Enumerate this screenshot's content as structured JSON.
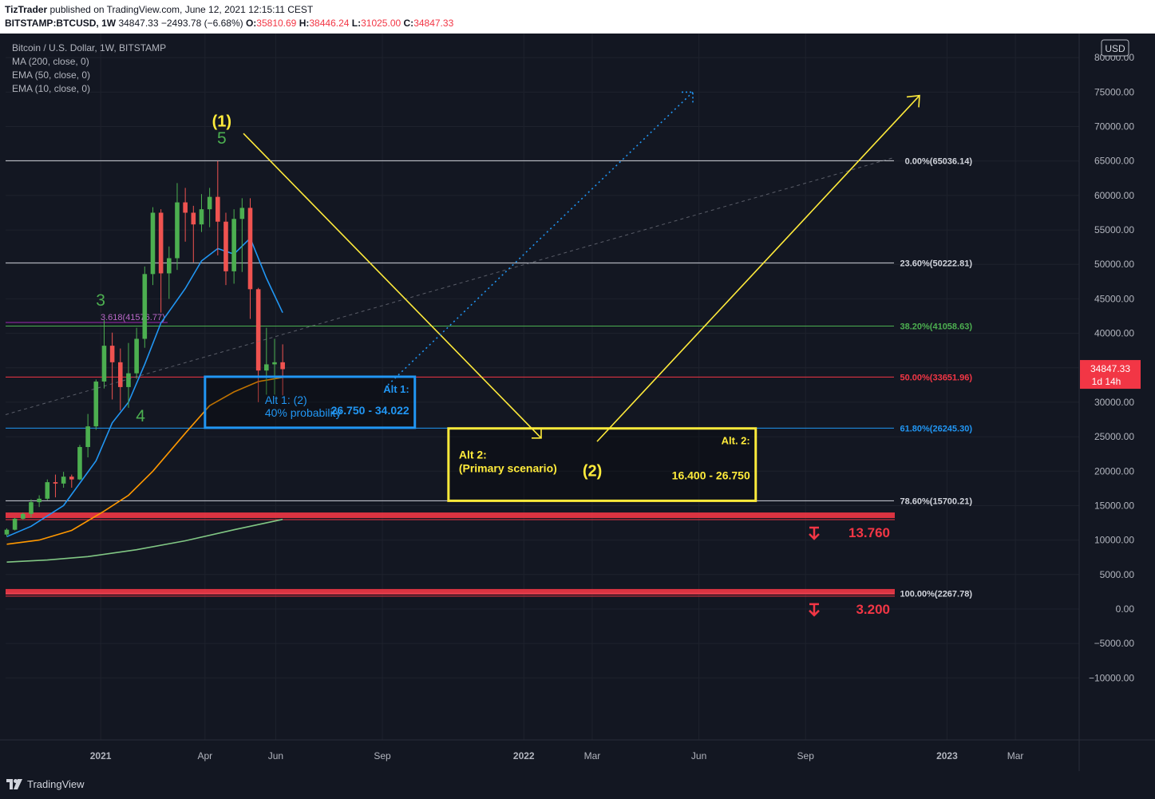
{
  "header": {
    "publisher": "TizTrader",
    "published_text": "published on TradingView.com, June 12, 2021 12:15:11 CEST",
    "symbol": "BITSTAMP:BTCUSD, 1W",
    "last": "34847.33",
    "change": "−2493.78 (−6.68%)",
    "open_label": "O:",
    "open": "35810.69",
    "high_label": "H:",
    "high": "38446.24",
    "low_label": "L:",
    "low": "31025.00",
    "close_label": "C:",
    "close": "34847.33"
  },
  "legend": {
    "title": "Bitcoin / U.S. Dollar, 1W, BITSTAMP",
    "indicators": [
      "MA (200, close, 0)",
      "EMA (50, close, 0)",
      "EMA (10, close, 0)"
    ]
  },
  "footer": {
    "brand": "TradingView"
  },
  "colors": {
    "background": "#131722",
    "grid": "#1e222d",
    "axis_text": "#b2b5be",
    "up": "#26a69a",
    "up_candle": "#4caf50",
    "down": "#ef5350",
    "ema10": "#2196f3",
    "ema50": "#ff9800",
    "ma200": "#81c784",
    "yellow": "#ffeb3b",
    "blue_box": "#2196f3",
    "red_zone": "#f23645",
    "purple": "#9c27b0"
  },
  "chart_data": {
    "type": "candlestick",
    "currency_label": "USD",
    "price_ticks": [
      80000,
      75000,
      70000,
      65000,
      60000,
      55000,
      50000,
      45000,
      40000,
      35000,
      30000,
      25000,
      20000,
      15000,
      10000,
      5000,
      0,
      -5000,
      -10000
    ],
    "price_tick_labels": [
      "80000.00",
      "75000.00",
      "70000.00",
      "65000.00",
      "60000.00",
      "55000.00",
      "50000.00",
      "45000.00",
      "40000.00",
      "35000.00",
      "30000.00",
      "25000.00",
      "20000.00",
      "15000.00",
      "10000.00",
      "5000.00",
      "0.00",
      "−5000.00",
      "−10000.00"
    ],
    "ylim": [
      -19000,
      83500
    ],
    "time_labels": [
      {
        "label": "2021",
        "date": "2021-01-01",
        "bold": true
      },
      {
        "label": "Apr",
        "date": "2021-04-01",
        "bold": false
      },
      {
        "label": "Jun",
        "date": "2021-06-01",
        "bold": false
      },
      {
        "label": "Sep",
        "date": "2021-09-01",
        "bold": false
      },
      {
        "label": "2022",
        "date": "2022-01-01",
        "bold": true
      },
      {
        "label": "Mar",
        "date": "2022-03-01",
        "bold": false
      },
      {
        "label": "Jun",
        "date": "2022-06-01",
        "bold": false
      },
      {
        "label": "Sep",
        "date": "2022-09-01",
        "bold": false
      },
      {
        "label": "2023",
        "date": "2023-01-01",
        "bold": true
      },
      {
        "label": "Mar",
        "date": "2023-03-01",
        "bold": false
      }
    ],
    "xlim": [
      "2020-10-11",
      "2023-04-25"
    ],
    "candles": [
      {
        "t": "2020-10-12",
        "o": 10800,
        "h": 11700,
        "l": 10500,
        "c": 11500
      },
      {
        "t": "2020-10-19",
        "o": 11500,
        "h": 13200,
        "l": 11400,
        "c": 13100
      },
      {
        "t": "2020-10-26",
        "o": 13100,
        "h": 14000,
        "l": 12900,
        "c": 13800
      },
      {
        "t": "2020-11-02",
        "o": 13800,
        "h": 15900,
        "l": 13300,
        "c": 15500
      },
      {
        "t": "2020-11-09",
        "o": 15500,
        "h": 16500,
        "l": 14800,
        "c": 16000
      },
      {
        "t": "2020-11-16",
        "o": 16000,
        "h": 18800,
        "l": 15800,
        "c": 18400
      },
      {
        "t": "2020-11-23",
        "o": 18400,
        "h": 19500,
        "l": 16200,
        "c": 18200
      },
      {
        "t": "2020-11-30",
        "o": 18200,
        "h": 19900,
        "l": 17600,
        "c": 19200
      },
      {
        "t": "2020-12-07",
        "o": 19200,
        "h": 19500,
        "l": 17600,
        "c": 18800
      },
      {
        "t": "2020-12-14",
        "o": 18800,
        "h": 23800,
        "l": 18700,
        "c": 23500
      },
      {
        "t": "2020-12-21",
        "o": 23500,
        "h": 28300,
        "l": 22000,
        "c": 26500
      },
      {
        "t": "2020-12-28",
        "o": 26500,
        "h": 33300,
        "l": 26000,
        "c": 33000
      },
      {
        "t": "2021-01-04",
        "o": 33000,
        "h": 41900,
        "l": 32000,
        "c": 38200
      },
      {
        "t": "2021-01-11",
        "o": 38200,
        "h": 40100,
        "l": 30400,
        "c": 35800
      },
      {
        "t": "2021-01-18",
        "o": 35800,
        "h": 37800,
        "l": 28800,
        "c": 32200
      },
      {
        "t": "2021-01-25",
        "o": 32200,
        "h": 38600,
        "l": 29200,
        "c": 34200
      },
      {
        "t": "2021-02-01",
        "o": 34200,
        "h": 40800,
        "l": 33400,
        "c": 39200
      },
      {
        "t": "2021-02-08",
        "o": 39200,
        "h": 49700,
        "l": 37900,
        "c": 48600
      },
      {
        "t": "2021-02-15",
        "o": 48600,
        "h": 58300,
        "l": 47000,
        "c": 57500
      },
      {
        "t": "2021-02-22",
        "o": 57500,
        "h": 58000,
        "l": 43000,
        "c": 48700
      },
      {
        "t": "2021-03-01",
        "o": 48700,
        "h": 52600,
        "l": 45000,
        "c": 50900
      },
      {
        "t": "2021-03-08",
        "o": 50900,
        "h": 61800,
        "l": 49200,
        "c": 59000
      },
      {
        "t": "2021-03-15",
        "o": 59000,
        "h": 61100,
        "l": 53300,
        "c": 57500
      },
      {
        "t": "2021-03-22",
        "o": 57500,
        "h": 58500,
        "l": 50300,
        "c": 55800
      },
      {
        "t": "2021-03-29",
        "o": 55800,
        "h": 60200,
        "l": 54700,
        "c": 58000
      },
      {
        "t": "2021-04-05",
        "o": 58000,
        "h": 61100,
        "l": 55400,
        "c": 59800
      },
      {
        "t": "2021-04-12",
        "o": 59800,
        "h": 65000,
        "l": 51300,
        "c": 56200
      },
      {
        "t": "2021-04-19",
        "o": 56200,
        "h": 57500,
        "l": 47000,
        "c": 49000
      },
      {
        "t": "2021-04-26",
        "o": 49000,
        "h": 58000,
        "l": 47200,
        "c": 56600
      },
      {
        "t": "2021-05-03",
        "o": 56600,
        "h": 59600,
        "l": 48900,
        "c": 58200
      },
      {
        "t": "2021-05-10",
        "o": 58200,
        "h": 59600,
        "l": 42100,
        "c": 46400
      },
      {
        "t": "2021-05-17",
        "o": 46400,
        "h": 46600,
        "l": 30000,
        "c": 34600
      },
      {
        "t": "2021-05-24",
        "o": 34600,
        "h": 40800,
        "l": 31100,
        "c": 35500
      },
      {
        "t": "2021-05-31",
        "o": 35500,
        "h": 39200,
        "l": 31100,
        "c": 35800
      },
      {
        "t": "2021-06-07",
        "o": 35800,
        "h": 38400,
        "l": 31000,
        "c": 34800
      }
    ],
    "series": [
      {
        "name": "EMA (10, close, 0)",
        "color_key": "ema10",
        "points": [
          [
            "2020-10-12",
            10500
          ],
          [
            "2020-11-02",
            12000
          ],
          [
            "2020-11-30",
            15000
          ],
          [
            "2020-12-28",
            21500
          ],
          [
            "2021-01-11",
            27000
          ],
          [
            "2021-01-25",
            30000
          ],
          [
            "2021-02-08",
            35500
          ],
          [
            "2021-02-22",
            41500
          ],
          [
            "2021-03-15",
            46500
          ],
          [
            "2021-03-29",
            50500
          ],
          [
            "2021-04-12",
            52300
          ],
          [
            "2021-04-26",
            51500
          ],
          [
            "2021-05-10",
            53800
          ],
          [
            "2021-05-24",
            48000
          ],
          [
            "2021-06-07",
            43000
          ]
        ]
      },
      {
        "name": "EMA (50, close, 0)",
        "color_key": "ema50",
        "points": [
          [
            "2020-10-12",
            9400
          ],
          [
            "2020-11-09",
            10000
          ],
          [
            "2020-12-07",
            11400
          ],
          [
            "2021-01-04",
            14200
          ],
          [
            "2021-01-25",
            16500
          ],
          [
            "2021-02-15",
            20000
          ],
          [
            "2021-03-15",
            25500
          ],
          [
            "2021-04-05",
            29500
          ],
          [
            "2021-04-26",
            31500
          ],
          [
            "2021-05-17",
            33000
          ],
          [
            "2021-06-07",
            33600
          ]
        ]
      },
      {
        "name": "MA (200, close, 0)",
        "color_key": "ma200",
        "points": [
          [
            "2020-10-12",
            6800
          ],
          [
            "2020-11-16",
            7100
          ],
          [
            "2020-12-21",
            7600
          ],
          [
            "2021-02-01",
            8600
          ],
          [
            "2021-03-15",
            9900
          ],
          [
            "2021-04-26",
            11500
          ],
          [
            "2021-06-07",
            13000
          ]
        ]
      }
    ],
    "fib_levels": [
      {
        "label": "0.00%(65036.14)",
        "value": 65036.14,
        "color": "#d1d4dc"
      },
      {
        "label": "23.60%(50222.81)",
        "value": 50222.81,
        "color": "#d1d4dc"
      },
      {
        "label": "38.20%(41058.63)",
        "value": 41058.63,
        "color": "#4caf50"
      },
      {
        "label": "50.00%(33651.96)",
        "value": 33651.96,
        "color": "#f23645"
      },
      {
        "label": "61.80%(26245.30)",
        "value": 26245.3,
        "color": "#2196f3"
      },
      {
        "label": "78.60%(15700.21)",
        "value": 15700.21,
        "color": "#d1d4dc"
      },
      {
        "label": "100.00%(2267.78)",
        "value": 2267.78,
        "color": "#d1d4dc"
      }
    ],
    "fib_extension": {
      "label": "3.618(41576.77)",
      "value": 41576.77
    },
    "wave_labels": [
      {
        "text": "(1)",
        "t": "2021-04-12",
        "v": 70000,
        "color_key": "yellow"
      },
      {
        "text": "5",
        "t": "2021-04-12",
        "v": 67500,
        "color_key": "up_candle"
      },
      {
        "text": "3",
        "t": "2021-01-01",
        "v": 44000,
        "color_key": "up_candle"
      },
      {
        "text": "4",
        "t": "2021-02-01",
        "v": 27200,
        "color_key": "up_candle"
      },
      {
        "text": "(2)",
        "t": "2022-03-05",
        "v": 20000,
        "color_key": "yellow"
      }
    ],
    "zones": [
      {
        "name": "alt1",
        "color_key": "blue_box",
        "t1": "2021-04-01",
        "t2": "2021-09-29",
        "v1": 26300,
        "v2": 33700,
        "title": "Alt 1:",
        "range": "26.750 - 34.022",
        "note1": "Alt 1: (2)",
        "note2": "40% probability"
      },
      {
        "name": "alt2",
        "color_key": "yellow",
        "t1": "2021-10-28",
        "t2": "2022-07-20",
        "v1": 15700,
        "v2": 26200,
        "title": "Alt. 2:",
        "range": "16.400 - 26.750",
        "note1": "Alt 2:",
        "note2": "(Primary scenario)",
        "wave": "(2)"
      }
    ],
    "support_zones": [
      {
        "label": "13.760",
        "top": 14000,
        "bottom": 13200
      },
      {
        "label": "3.200",
        "top": 2900,
        "bottom": 2100
      }
    ],
    "last_price": {
      "value": "34847.33",
      "countdown": "1d 14h",
      "v": 34847.33
    }
  }
}
